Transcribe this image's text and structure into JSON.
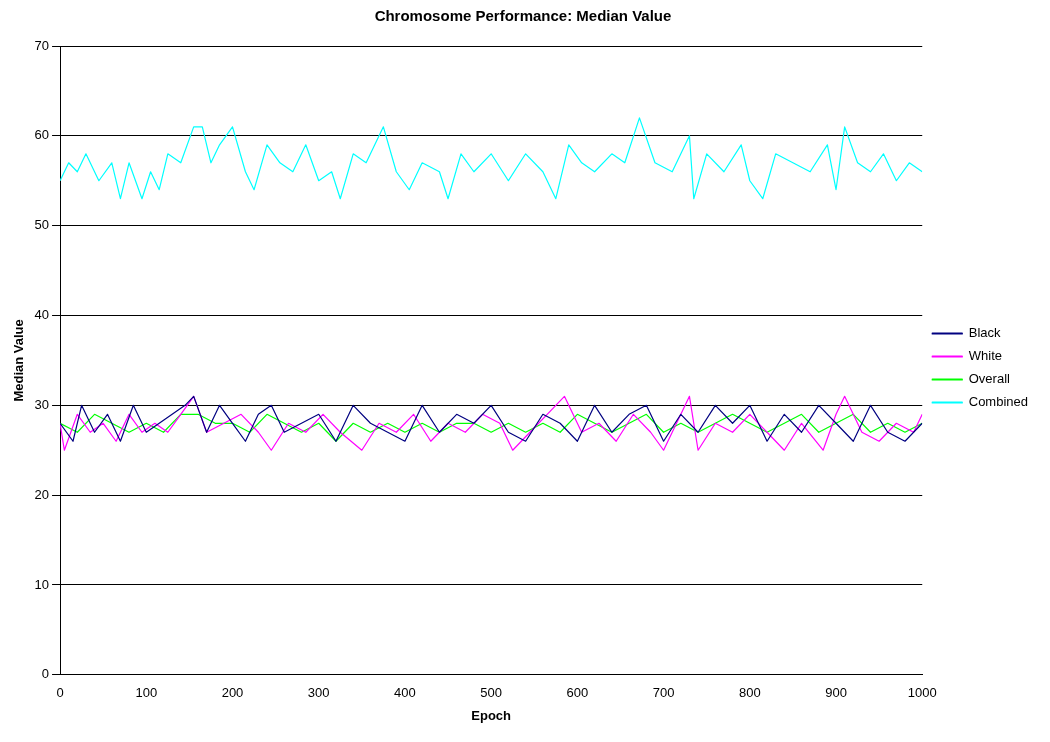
{
  "chart_data": {
    "type": "line",
    "title": "Chromosome Performance: Median Value",
    "xlabel": "Epoch",
    "ylabel": "Median Value",
    "xlim": [
      0,
      1000
    ],
    "xticks": [
      0,
      100,
      200,
      300,
      400,
      500,
      600,
      700,
      800,
      900,
      1000
    ],
    "ylim": [
      0,
      70
    ],
    "yticks": [
      0,
      10,
      20,
      30,
      40,
      50,
      60,
      70
    ],
    "grid": "y",
    "legend": "right",
    "marker": "none",
    "line_style": "solid",
    "series": [
      {
        "name": "Black",
        "color": "#000080",
        "x": [
          0,
          15,
          25,
          40,
          55,
          70,
          85,
          100,
          115,
          130,
          145,
          155,
          170,
          185,
          200,
          215,
          230,
          245,
          260,
          280,
          300,
          320,
          340,
          360,
          380,
          400,
          420,
          440,
          460,
          480,
          500,
          520,
          540,
          560,
          580,
          600,
          620,
          640,
          660,
          680,
          700,
          720,
          740,
          760,
          780,
          800,
          820,
          840,
          860,
          880,
          900,
          920,
          940,
          960,
          980,
          1000
        ],
        "values": [
          28,
          26,
          30,
          27,
          29,
          26,
          30,
          27,
          28,
          29,
          30,
          31,
          27,
          30,
          28,
          26,
          29,
          30,
          27,
          28,
          29,
          26,
          30,
          28,
          27,
          26,
          30,
          27,
          29,
          28,
          30,
          27,
          26,
          29,
          28,
          26,
          30,
          27,
          29,
          30,
          26,
          29,
          27,
          30,
          28,
          30,
          26,
          29,
          27,
          30,
          28,
          26,
          30,
          27,
          26,
          28
        ]
      },
      {
        "name": "White",
        "color": "#ff00ff",
        "x": [
          0,
          5,
          20,
          35,
          50,
          65,
          80,
          95,
          110,
          125,
          140,
          155,
          170,
          190,
          210,
          230,
          245,
          265,
          285,
          305,
          325,
          350,
          370,
          390,
          410,
          430,
          450,
          470,
          490,
          510,
          525,
          545,
          565,
          585,
          605,
          625,
          645,
          665,
          685,
          700,
          715,
          730,
          740,
          760,
          780,
          800,
          820,
          840,
          860,
          885,
          900,
          910,
          930,
          950,
          970,
          990,
          1000
        ],
        "values": [
          28,
          25,
          29,
          27,
          28,
          26,
          29,
          27,
          28,
          27,
          29,
          31,
          27,
          28,
          29,
          27,
          25,
          28,
          27,
          29,
          27,
          25,
          28,
          27,
          29,
          26,
          28,
          27,
          29,
          28,
          25,
          27,
          29,
          31,
          27,
          28,
          26,
          29,
          27,
          25,
          28,
          31,
          25,
          28,
          27,
          29,
          27,
          25,
          28,
          25,
          29,
          31,
          27,
          26,
          28,
          27,
          29
        ]
      },
      {
        "name": "Overall",
        "color": "#00ff00",
        "x": [
          0,
          20,
          40,
          60,
          80,
          100,
          120,
          140,
          160,
          180,
          200,
          220,
          240,
          260,
          280,
          300,
          320,
          340,
          360,
          380,
          400,
          420,
          440,
          460,
          480,
          500,
          520,
          540,
          560,
          580,
          600,
          620,
          640,
          660,
          680,
          700,
          720,
          740,
          760,
          780,
          800,
          820,
          840,
          860,
          880,
          900,
          920,
          940,
          960,
          980,
          1000
        ],
        "values": [
          28,
          27,
          29,
          28,
          27,
          28,
          27,
          29,
          29,
          28,
          28,
          27,
          29,
          28,
          27,
          28,
          26,
          28,
          27,
          28,
          27,
          28,
          27,
          28,
          28,
          27,
          28,
          27,
          28,
          27,
          29,
          28,
          27,
          28,
          29,
          27,
          28,
          27,
          28,
          29,
          28,
          27,
          28,
          29,
          27,
          28,
          29,
          27,
          28,
          27,
          28
        ]
      },
      {
        "name": "Combined",
        "color": "#00ffff",
        "x": [
          0,
          10,
          20,
          30,
          45,
          60,
          70,
          80,
          95,
          105,
          115,
          125,
          140,
          155,
          165,
          175,
          185,
          200,
          215,
          225,
          240,
          255,
          270,
          285,
          300,
          315,
          325,
          340,
          355,
          375,
          390,
          405,
          420,
          440,
          450,
          465,
          480,
          500,
          520,
          540,
          560,
          575,
          590,
          605,
          620,
          640,
          655,
          672,
          690,
          710,
          730,
          735,
          750,
          770,
          790,
          800,
          815,
          830,
          850,
          870,
          890,
          900,
          910,
          925,
          940,
          955,
          970,
          985,
          1000
        ],
        "values": [
          55,
          57,
          56,
          58,
          55,
          57,
          53,
          57,
          53,
          56,
          54,
          58,
          57,
          61,
          61,
          57,
          59,
          61,
          56,
          54,
          59,
          57,
          56,
          59,
          55,
          56,
          53,
          58,
          57,
          61,
          56,
          54,
          57,
          56,
          53,
          58,
          56,
          58,
          55,
          58,
          56,
          53,
          59,
          57,
          56,
          58,
          57,
          62,
          57,
          56,
          60,
          53,
          58,
          56,
          59,
          55,
          53,
          58,
          57,
          56,
          59,
          54,
          61,
          57,
          56,
          58,
          55,
          57,
          56
        ]
      }
    ]
  }
}
